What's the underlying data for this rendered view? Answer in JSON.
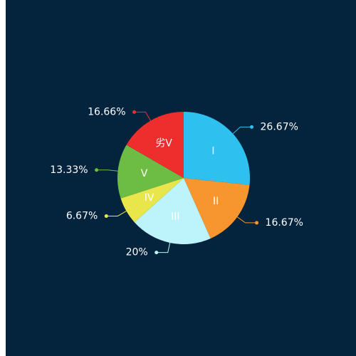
{
  "chart_data": {
    "type": "pie",
    "categories": [
      "I",
      "II",
      "III",
      "IV",
      "V",
      "劣V"
    ],
    "values": [
      26.67,
      16.67,
      20,
      6.67,
      13.33,
      16.66
    ],
    "value_labels": [
      "26.67%",
      "16.67%",
      "20%",
      "6.67%",
      "13.33%",
      "16.66%"
    ],
    "colors": [
      "#2ec0ee",
      "#f7952f",
      "#bdf4fb",
      "#e8e64b",
      "#6dbd45",
      "#ee2d2d"
    ]
  }
}
